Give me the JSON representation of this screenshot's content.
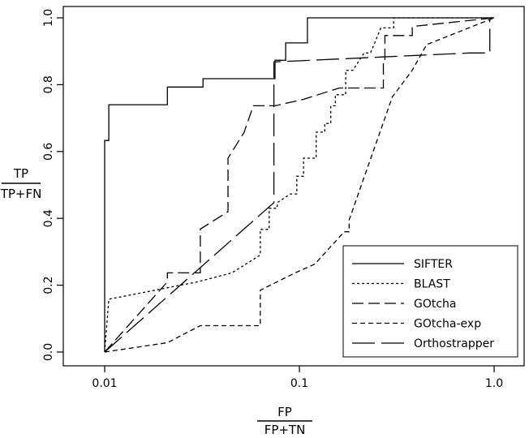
{
  "chart_data": {
    "type": "line",
    "title": "",
    "xlabel": {
      "numerator": "FP",
      "denominator": "FP+TN"
    },
    "ylabel": {
      "numerator": "TP",
      "denominator": "TP+FN"
    },
    "x_scale": "log",
    "xlim": [
      0.01,
      1.0
    ],
    "ylim": [
      0.0,
      1.0
    ],
    "x_ticks": [
      0.01,
      0.1,
      1.0
    ],
    "x_tick_labels": [
      "0.01",
      "0.1",
      "1.0"
    ],
    "y_ticks": [
      0.0,
      0.2,
      0.4,
      0.6,
      0.8,
      1.0
    ],
    "y_tick_labels": [
      "0.0",
      "0.2",
      "0.4",
      "0.6",
      "0.8",
      "1.0"
    ],
    "grid": false,
    "legend_position": "bottom-right",
    "series": [
      {
        "name": "SIFTER",
        "dash": "",
        "points": [
          [
            0.01,
            0
          ],
          [
            0.01,
            0.633
          ],
          [
            0.0105,
            0.633
          ],
          [
            0.0105,
            0.74
          ],
          [
            0.021,
            0.74
          ],
          [
            0.021,
            0.793
          ],
          [
            0.032,
            0.793
          ],
          [
            0.032,
            0.818
          ],
          [
            0.075,
            0.818
          ],
          [
            0.075,
            0.873
          ],
          [
            0.085,
            0.873
          ],
          [
            0.085,
            0.925
          ],
          [
            0.11,
            0.925
          ],
          [
            0.11,
            1.0
          ],
          [
            1.0,
            1.0
          ]
        ]
      },
      {
        "name": "BLAST",
        "dash": "3,3",
        "points": [
          [
            0.01,
            0
          ],
          [
            0.0105,
            0.158
          ],
          [
            0.03,
            0.21
          ],
          [
            0.045,
            0.237
          ],
          [
            0.063,
            0.29
          ],
          [
            0.063,
            0.367
          ],
          [
            0.07,
            0.367
          ],
          [
            0.07,
            0.43
          ],
          [
            0.077,
            0.43
          ],
          [
            0.077,
            0.447
          ],
          [
            0.09,
            0.473
          ],
          [
            0.097,
            0.473
          ],
          [
            0.097,
            0.526
          ],
          [
            0.105,
            0.526
          ],
          [
            0.105,
            0.58
          ],
          [
            0.122,
            0.58
          ],
          [
            0.122,
            0.658
          ],
          [
            0.135,
            0.658
          ],
          [
            0.135,
            0.684
          ],
          [
            0.145,
            0.684
          ],
          [
            0.145,
            0.737
          ],
          [
            0.153,
            0.737
          ],
          [
            0.153,
            0.77
          ],
          [
            0.173,
            0.77
          ],
          [
            0.173,
            0.843
          ],
          [
            0.188,
            0.843
          ],
          [
            0.215,
            0.895
          ],
          [
            0.232,
            0.895
          ],
          [
            0.262,
            0.97
          ],
          [
            0.305,
            0.97
          ],
          [
            0.305,
            1.0
          ],
          [
            1.0,
            1.0
          ]
        ]
      },
      {
        "name": "GOtcha",
        "dash": "14,6",
        "points": [
          [
            0.01,
            0
          ],
          [
            0.021,
            0.21
          ],
          [
            0.021,
            0.237
          ],
          [
            0.031,
            0.237
          ],
          [
            0.031,
            0.368
          ],
          [
            0.043,
            0.42
          ],
          [
            0.043,
            0.58
          ],
          [
            0.052,
            0.657
          ],
          [
            0.058,
            0.737
          ],
          [
            0.075,
            0.737
          ],
          [
            0.105,
            0.756
          ],
          [
            0.16,
            0.79
          ],
          [
            0.27,
            0.79
          ],
          [
            0.27,
            0.868
          ],
          [
            0.275,
            0.868
          ],
          [
            0.275,
            0.947
          ],
          [
            0.38,
            0.947
          ],
          [
            0.38,
            0.974
          ],
          [
            1.0,
            1.0
          ]
        ]
      },
      {
        "name": "GOtcha-exp",
        "dash": "6,4",
        "points": [
          [
            0.01,
            0
          ],
          [
            0.021,
            0.028
          ],
          [
            0.031,
            0.079
          ],
          [
            0.063,
            0.079
          ],
          [
            0.063,
            0.185
          ],
          [
            0.095,
            0.237
          ],
          [
            0.12,
            0.263
          ],
          [
            0.17,
            0.36
          ],
          [
            0.18,
            0.36
          ],
          [
            0.18,
            0.395
          ],
          [
            0.3,
            0.763
          ],
          [
            0.38,
            0.843
          ],
          [
            0.45,
            0.92
          ],
          [
            1.0,
            1.0
          ]
        ]
      },
      {
        "name": "Orthostrapper",
        "dash": "28,8",
        "points": [
          [
            0.01,
            0
          ],
          [
            0.074,
            0.447
          ],
          [
            0.074,
            0.868
          ],
          [
            0.75,
            0.895
          ],
          [
            0.95,
            0.895
          ],
          [
            0.95,
            1.0
          ],
          [
            1.0,
            1.0
          ]
        ]
      }
    ]
  }
}
